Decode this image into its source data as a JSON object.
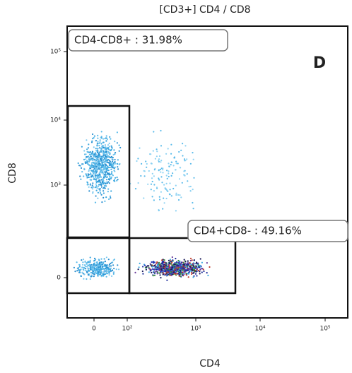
{
  "title": "[CD3+] CD4 / CD8",
  "panel_label": "D",
  "x_axis": {
    "label": "CD4",
    "ticks": [
      "0",
      "10²",
      "10³",
      "10⁴",
      "10⁵"
    ]
  },
  "y_axis": {
    "label": "CD8",
    "ticks": [
      "10⁵",
      "10⁴",
      "10³",
      "0"
    ]
  },
  "gates": [
    {
      "label": "CD4-CD8+ : 31.98%"
    },
    {
      "label": "CD4+CD8- : 49.16%"
    }
  ]
}
